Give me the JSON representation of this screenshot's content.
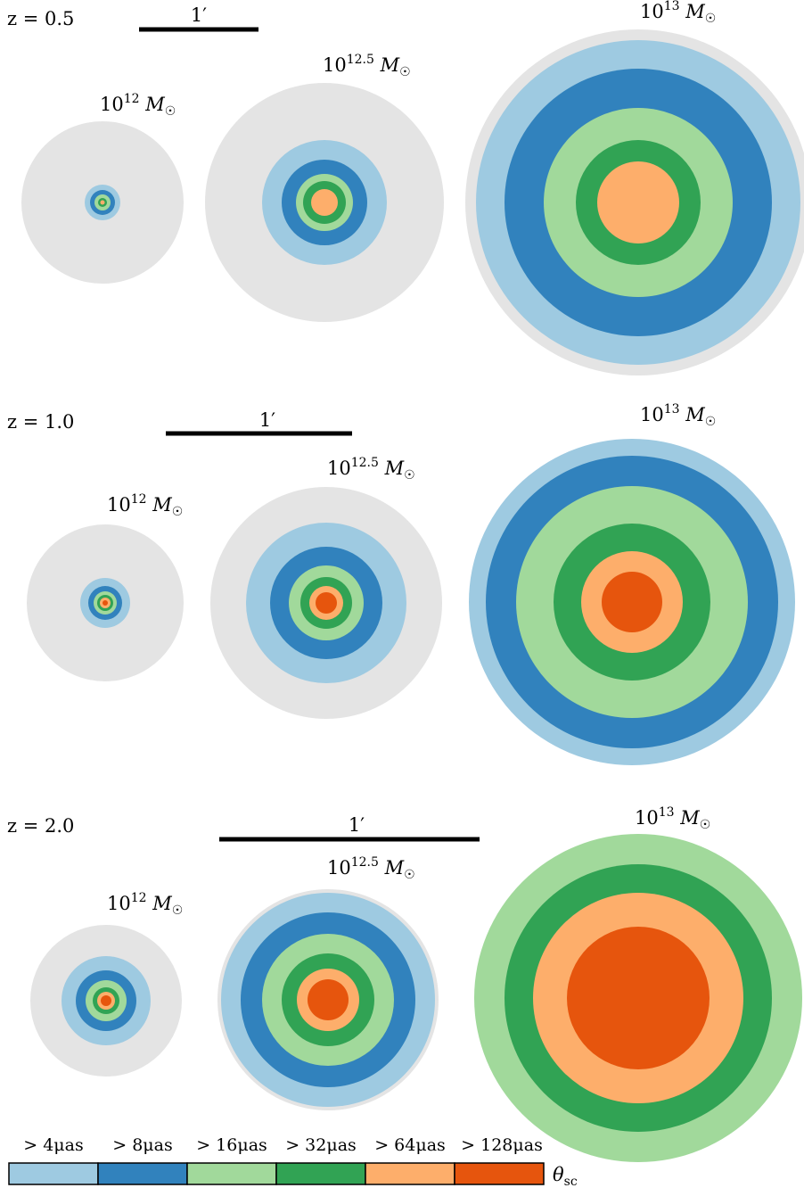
{
  "figure": {
    "colors": {
      "halo": "#e4e4e4",
      "gt_4": "#9ecae1",
      "gt_8": "#3182bd",
      "gt_16": "#a1d99b",
      "gt_32": "#31a354",
      "gt_64": "#fdae6b",
      "gt_128": "#e6550d"
    },
    "panels": [
      {
        "z_label": "z = 0.5",
        "scale_label": "1′",
        "halos": [
          {
            "mass_label": "10^12 M☉",
            "exponent": "12",
            "rings": [
              "halo",
              "gt_4",
              "gt_8",
              "gt_16",
              "gt_32"
            ]
          },
          {
            "mass_label": "10^12.5 M☉",
            "exponent": "12.5",
            "rings": [
              "halo",
              "gt_4",
              "gt_8",
              "gt_16",
              "gt_32",
              "gt_64"
            ]
          },
          {
            "mass_label": "10^13 M☉",
            "exponent": "13",
            "rings": [
              "halo",
              "gt_4",
              "gt_8",
              "gt_16",
              "gt_32",
              "gt_64"
            ]
          }
        ]
      },
      {
        "z_label": "z = 1.0",
        "scale_label": "1′",
        "halos": [
          {
            "mass_label": "10^12 M☉",
            "exponent": "12",
            "rings": [
              "halo",
              "gt_4",
              "gt_8",
              "gt_16",
              "gt_32",
              "gt_64",
              "gt_128"
            ]
          },
          {
            "mass_label": "10^12.5 M☉",
            "exponent": "12.5",
            "rings": [
              "halo",
              "gt_4",
              "gt_8",
              "gt_16",
              "gt_32",
              "gt_64",
              "gt_128"
            ]
          },
          {
            "mass_label": "10^13 M☉",
            "exponent": "13",
            "rings": [
              "gt_4",
              "gt_8",
              "gt_16",
              "gt_32",
              "gt_64",
              "gt_128"
            ]
          }
        ]
      },
      {
        "z_label": "z = 2.0",
        "scale_label": "1′",
        "halos": [
          {
            "mass_label": "10^12 M☉",
            "exponent": "12",
            "rings": [
              "halo",
              "gt_4",
              "gt_8",
              "gt_16",
              "gt_32",
              "gt_64",
              "gt_128"
            ]
          },
          {
            "mass_label": "10^12.5 M☉",
            "exponent": "12.5",
            "rings": [
              "halo",
              "gt_4",
              "gt_8",
              "gt_16",
              "gt_32",
              "gt_64",
              "gt_128"
            ]
          },
          {
            "mass_label": "10^13 M☉",
            "exponent": "13",
            "rings": [
              "gt_16",
              "gt_32",
              "gt_64",
              "gt_128"
            ]
          }
        ]
      }
    ],
    "colorbar": {
      "labels": [
        "> 4μas",
        "> 8μas",
        "> 16μas",
        "> 32μas",
        "> 64μas",
        "> 128μas"
      ],
      "keys": [
        "gt_4",
        "gt_8",
        "gt_16",
        "gt_32",
        "gt_64",
        "gt_128"
      ],
      "title": "θsc"
    }
  }
}
